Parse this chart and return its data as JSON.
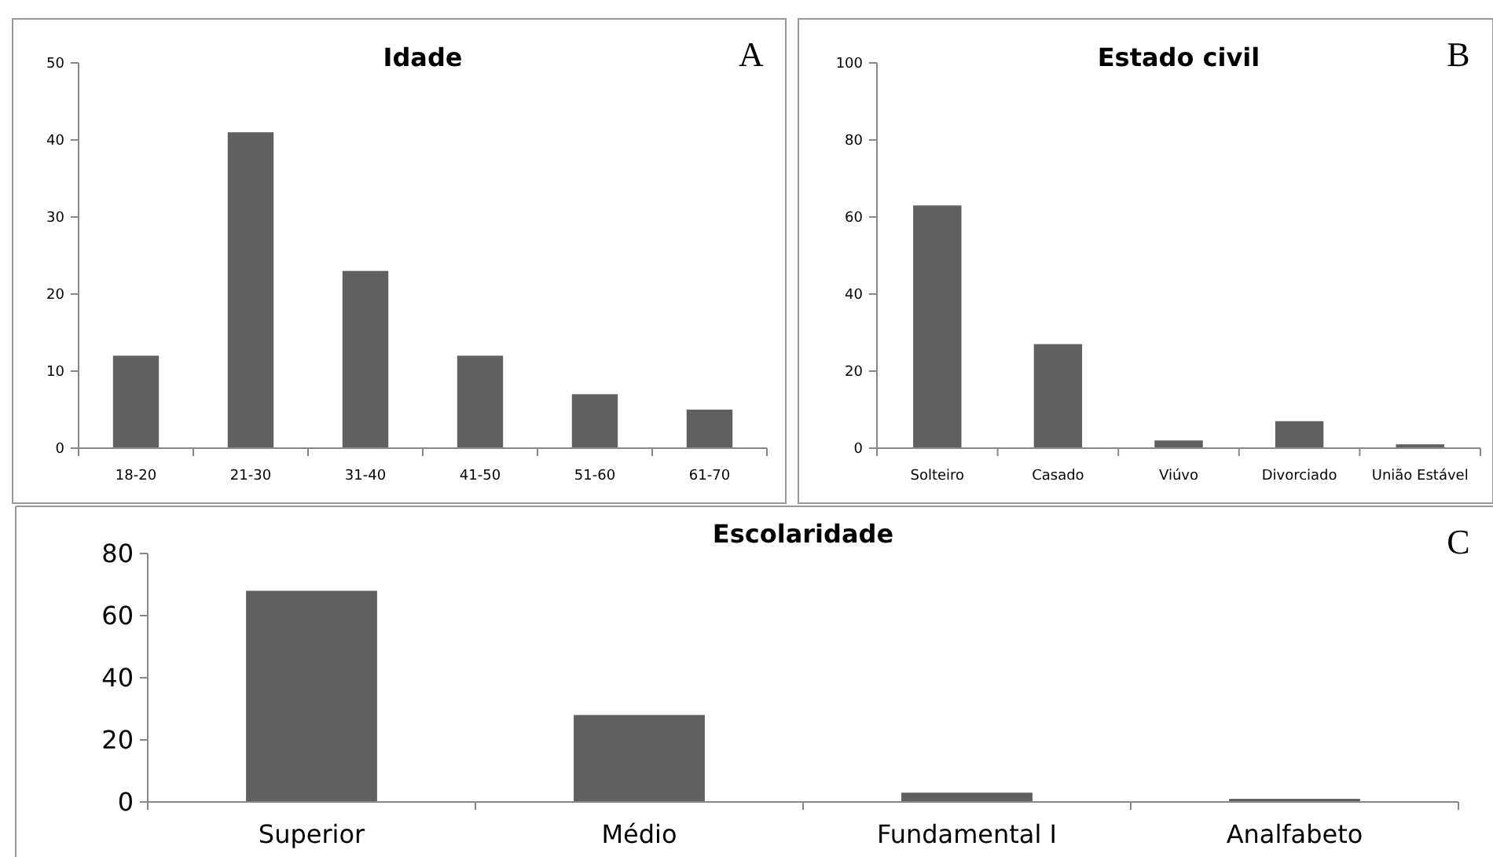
{
  "chart_data": [
    {
      "type": "bar",
      "title": "Idade",
      "annotations": [
        "A"
      ],
      "categories": [
        "18-20",
        "21-30",
        "31-40",
        "41-50",
        "51-60",
        "61-70"
      ],
      "values": [
        12,
        41,
        23,
        12,
        7,
        5
      ],
      "color": "#606060",
      "ylim": [
        0,
        50
      ],
      "yticks": [
        0,
        10,
        20,
        30,
        40,
        50
      ],
      "grid": false
    },
    {
      "type": "bar",
      "title": "Estado civil",
      "annotations": [
        "B"
      ],
      "categories": [
        "Solteiro",
        "Casado",
        "Viúvo",
        "Divorciado",
        "União Estável"
      ],
      "values": [
        63,
        27,
        2,
        7,
        1
      ],
      "color": "#606060",
      "ylim": [
        0,
        100
      ],
      "yticks": [
        0,
        20,
        40,
        60,
        80,
        100
      ],
      "grid": false
    },
    {
      "type": "bar",
      "title": "Escolaridade",
      "annotations": [
        "C"
      ],
      "categories": [
        "Superior",
        "Médio",
        "Fundamental I",
        "Analfabeto"
      ],
      "values": [
        68,
        28,
        3,
        1
      ],
      "color": "#606060",
      "ylim": [
        0,
        80
      ],
      "yticks": [
        0,
        20,
        40,
        60,
        80
      ],
      "grid": false
    }
  ]
}
